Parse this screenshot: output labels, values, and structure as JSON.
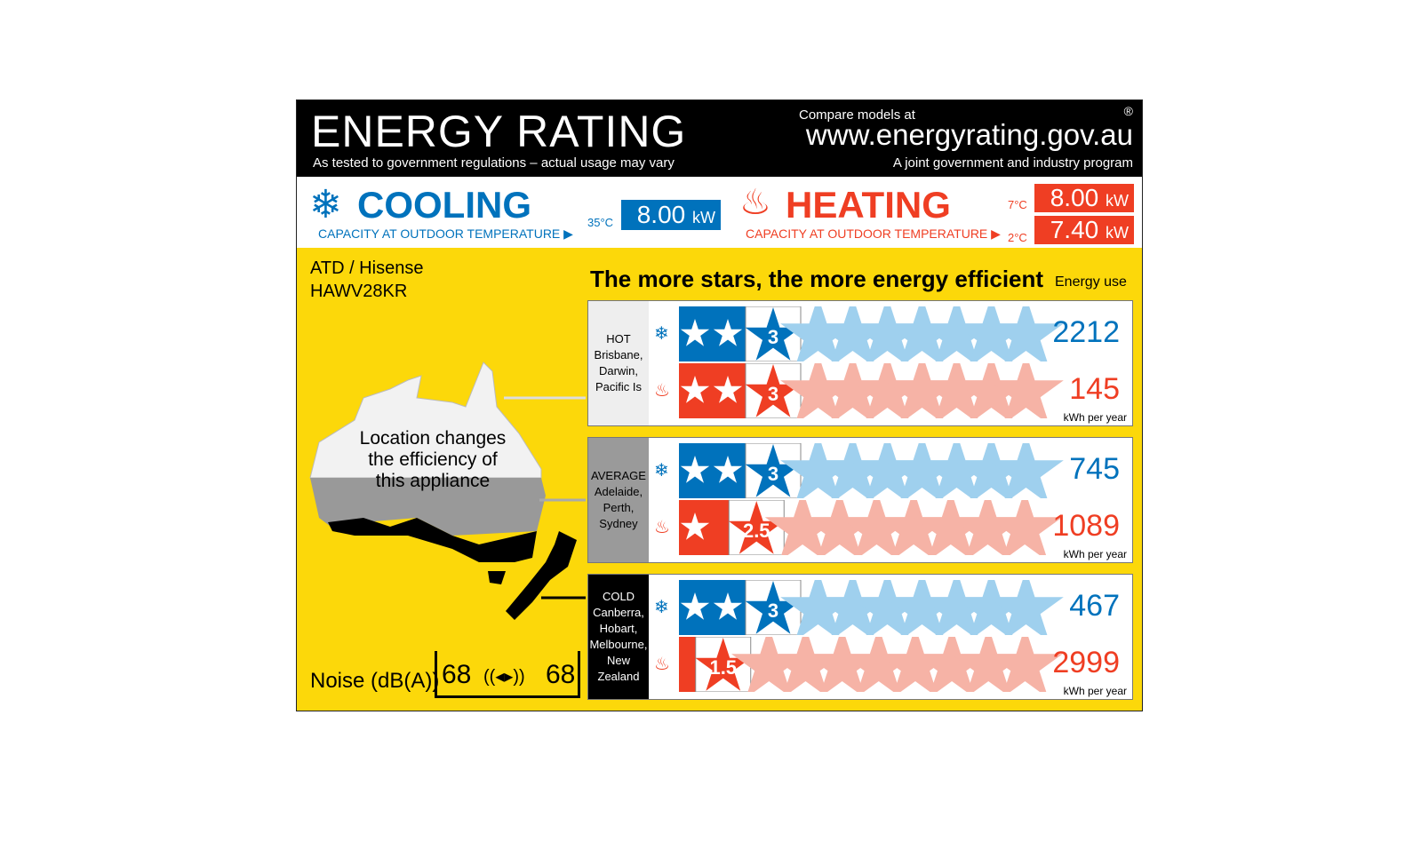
{
  "header": {
    "title": "ENERGY RATING",
    "subtitle": "As tested to government regulations – actual usage may vary",
    "compare": "Compare models at",
    "url": "www.energyrating.gov.au",
    "joint": "A joint government and industry program",
    "registered": "®"
  },
  "cooling": {
    "label": "COOLING",
    "caption": "CAPACITY AT OUTDOOR TEMPERATURE ▶",
    "temp": "35°C",
    "capacity": "8.00",
    "unit": "kW",
    "color": "#0072bc"
  },
  "heating": {
    "label": "HEATING",
    "caption": "CAPACITY AT OUTDOOR TEMPERATURE ▶",
    "temps": [
      "7°C",
      "2°C"
    ],
    "capacities": [
      "8.00",
      "7.40"
    ],
    "unit": "kW",
    "color": "#ef3e23"
  },
  "model": {
    "brand": "ATD / Hisense",
    "number": "HAWV28KR"
  },
  "headline": "The more stars, the more energy efficient",
  "energy_use_label": "Energy use",
  "kwh_label": "kWh per year",
  "map_text": [
    "Location changes",
    "the efficiency of",
    "this appliance"
  ],
  "zones": [
    {
      "name": "HOT",
      "places": [
        "Brisbane,",
        "Darwin,",
        "Pacific Is"
      ],
      "bg": "#eeeeee",
      "fg": "#000",
      "cooling_stars": 3,
      "cooling_label": "3",
      "cooling_use": "2212",
      "heating_stars": 3,
      "heating_label": "3",
      "heating_use": "145"
    },
    {
      "name": "AVERAGE",
      "places": [
        "Adelaide,",
        "Perth,",
        "Sydney"
      ],
      "bg": "#9a9a9a",
      "fg": "#000",
      "cooling_stars": 3,
      "cooling_label": "3",
      "cooling_use": "745",
      "heating_stars": 2.5,
      "heating_label": "2.5",
      "heating_use": "1089"
    },
    {
      "name": "COLD",
      "places": [
        "Canberra,",
        "Hobart,",
        "Melbourne,",
        "New Zealand"
      ],
      "bg": "#000000",
      "fg": "#fff",
      "cooling_stars": 3,
      "cooling_label": "3",
      "cooling_use": "467",
      "heating_stars": 1.5,
      "heating_label": "1.5",
      "heating_use": "2999"
    }
  ],
  "noise": {
    "label": "Noise (dB(A))",
    "indoor": "68",
    "outdoor": "68"
  }
}
